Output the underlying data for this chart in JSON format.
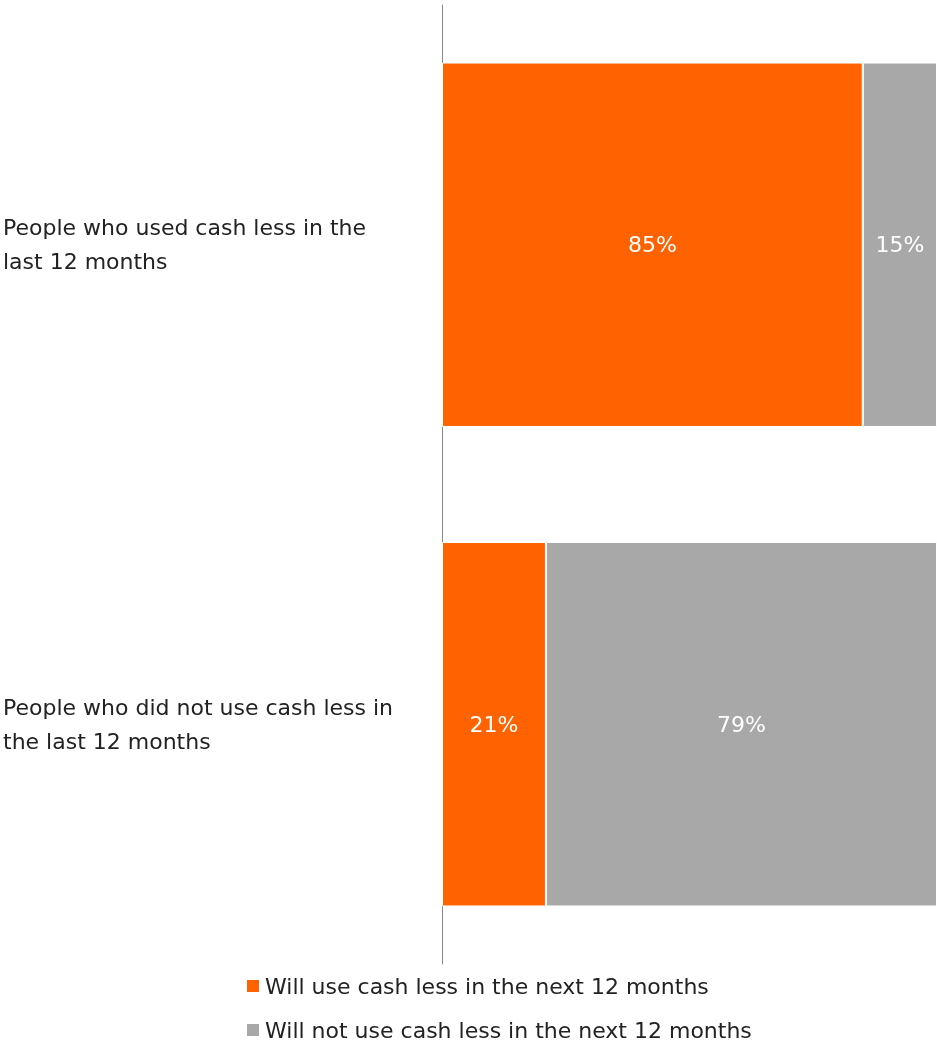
{
  "chart_data": {
    "type": "bar",
    "orientation": "horizontal",
    "stacked": true,
    "legend": "bottom",
    "grid": false,
    "tick_labels": "y",
    "categories": [
      "People who used cash less in the last 12 months",
      "People who did not use cash less in the last 12 months"
    ],
    "series": [
      {
        "name": "Will use cash less in the next 12 months",
        "color": "#ff6200",
        "values": [
          85,
          21
        ],
        "value_labels": [
          "85%",
          "21%"
        ]
      },
      {
        "name": "Will not use cash less in the next 12 months",
        "color": "#a8a8a8",
        "values": [
          15,
          79
        ],
        "value_labels": [
          "15%",
          "79%"
        ]
      }
    ]
  }
}
